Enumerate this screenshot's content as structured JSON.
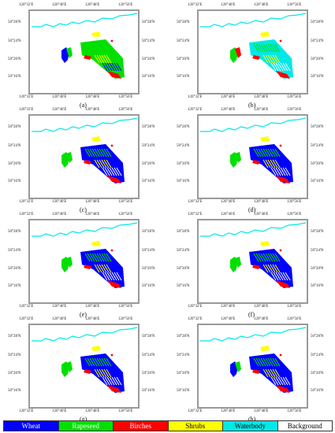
{
  "ticks": {
    "top": [
      "120°32'E",
      "120°40'E",
      "120°48'E",
      "120°56'E"
    ],
    "bottom": [
      "120°32'E",
      "120°40'E",
      "120°48'E",
      "120°56'E"
    ],
    "left": [
      "50°28'N",
      "50°24'N",
      "50°20'N",
      "50°16'N"
    ],
    "right": [
      "50°28'N",
      "50°24'N",
      "50°20'N",
      "50°16'N"
    ]
  },
  "panels": [
    {
      "label": "(a)",
      "variant": "truth"
    },
    {
      "label": "(b)",
      "variant": "mixed"
    },
    {
      "label": "(c)",
      "variant": "classA"
    },
    {
      "label": "(d)",
      "variant": "classB"
    },
    {
      "label": "(e)",
      "variant": "classC"
    },
    {
      "label": "(f)",
      "variant": "classB"
    },
    {
      "label": "(g)",
      "variant": "classD"
    },
    {
      "label": "(h)",
      "variant": "best"
    }
  ],
  "legend": [
    {
      "label": "Wheat",
      "bg": "#0000ff",
      "fg": "#ffffff"
    },
    {
      "label": "Rapeseed",
      "bg": "#00e000",
      "fg": "#ffffff"
    },
    {
      "label": "Birches",
      "bg": "#ff0000",
      "fg": "#ffffff"
    },
    {
      "label": "Shrubs",
      "bg": "#ffff00",
      "fg": "#000000"
    },
    {
      "label": "Waterbody",
      "bg": "#00e8e8",
      "fg": "#000000"
    },
    {
      "label": "Background",
      "bg": "#ffffff",
      "fg": "#000000"
    }
  ],
  "colors": {
    "wheat": "#0000ff",
    "rapeseed": "#00e000",
    "birches": "#ff0000",
    "shrubs": "#ffff00",
    "waterbody": "#00e8e8",
    "frame": "#9a9a9a"
  }
}
